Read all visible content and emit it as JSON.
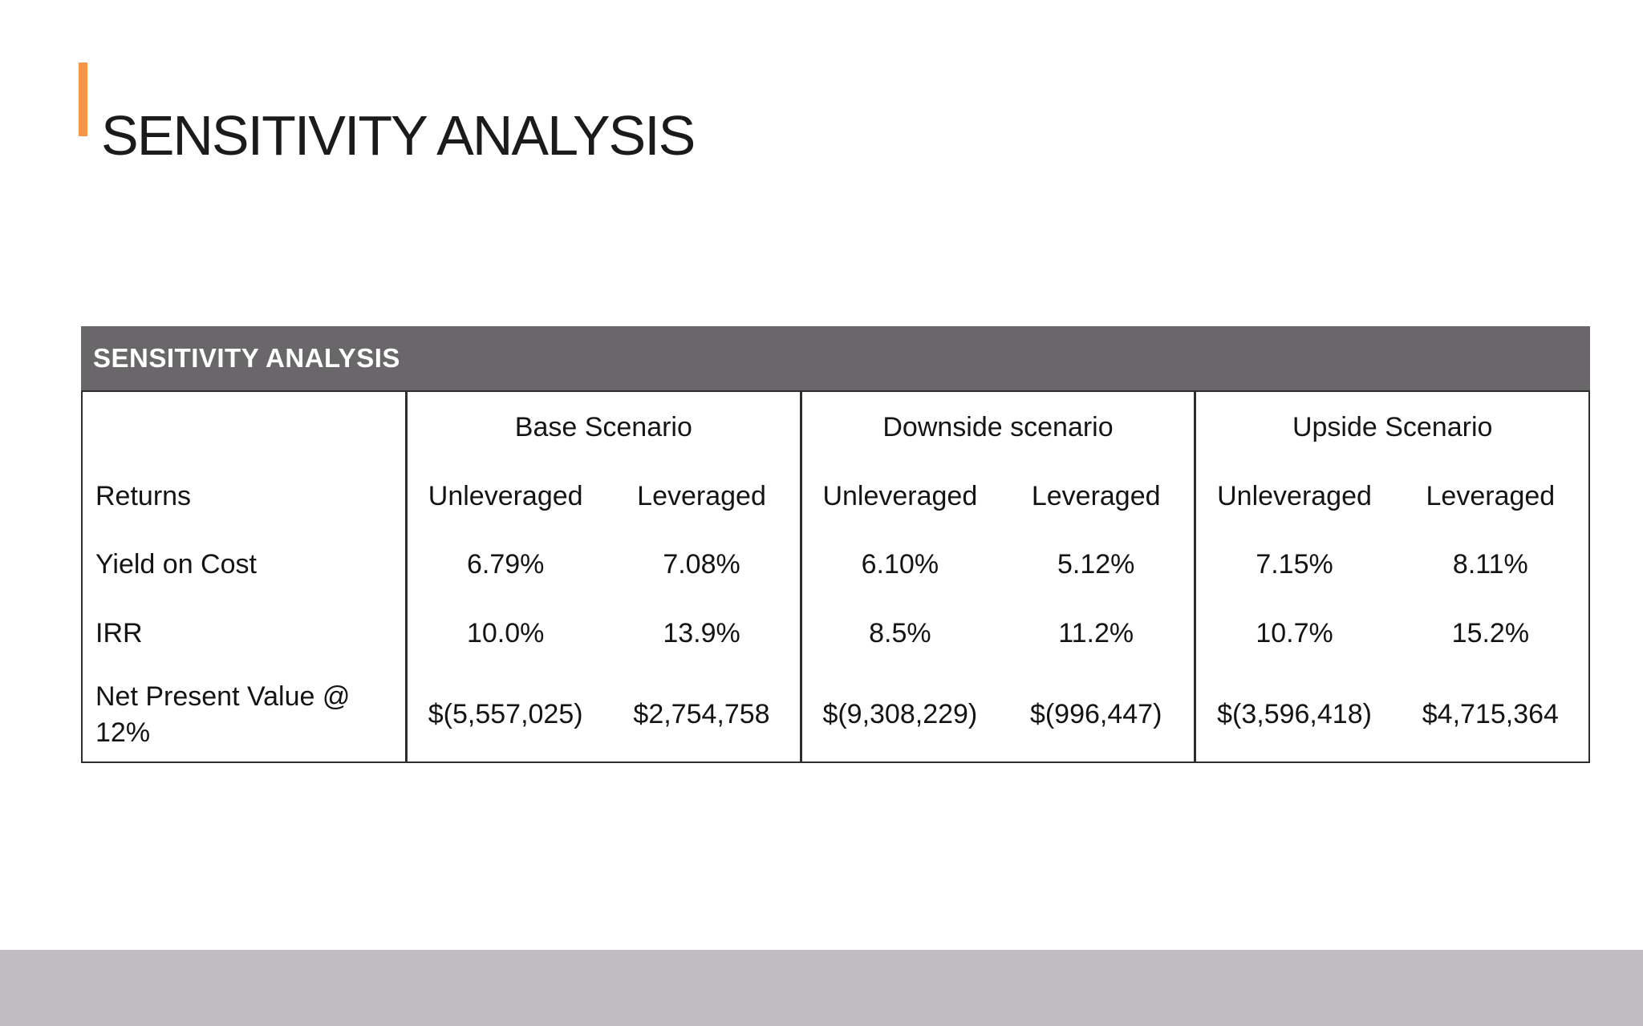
{
  "page": {
    "title": "SENSITIVITY ANALYSIS"
  },
  "colors": {
    "accent_orange": "#F79646",
    "table_header_gray": "#6A676A",
    "footer_gray": "#BFBDC0",
    "border_dark": "#2E2E2E"
  },
  "table": {
    "header": "SENSITIVITY ANALYSIS",
    "scenarios": [
      {
        "label": "Base Scenario"
      },
      {
        "label": "Downside scenario"
      },
      {
        "label": "Upside Scenario"
      }
    ],
    "returns_label": "Returns",
    "sub_headers": [
      "Unleveraged",
      "Leveraged",
      "Unleveraged",
      "Leveraged",
      "Unleveraged",
      "Leveraged"
    ],
    "rows": [
      {
        "label": "Yield on Cost",
        "values": [
          "6.79%",
          "7.08%",
          "6.10%",
          "5.12%",
          "7.15%",
          "8.11%"
        ]
      },
      {
        "label": "IRR",
        "values": [
          "10.0%",
          "13.9%",
          "8.5%",
          "11.2%",
          "10.7%",
          "15.2%"
        ]
      },
      {
        "label": "Net Present Value @ 12%",
        "values": [
          "$(5,557,025)",
          "$2,754,758",
          "$(9,308,229)",
          "$(996,447)",
          "$(3,596,418)",
          "$4,715,364"
        ]
      }
    ]
  },
  "chart_data": {
    "type": "table",
    "title": "SENSITIVITY ANALYSIS",
    "column_groups": [
      "Base Scenario",
      "Downside scenario",
      "Upside Scenario"
    ],
    "columns": [
      "Unleveraged",
      "Leveraged"
    ],
    "row_header": "Returns",
    "rows": [
      {
        "metric": "Yield on Cost",
        "base": [
          "6.79%",
          "7.08%"
        ],
        "downside": [
          "6.10%",
          "5.12%"
        ],
        "upside": [
          "7.15%",
          "8.11%"
        ]
      },
      {
        "metric": "IRR",
        "base": [
          "10.0%",
          "13.9%"
        ],
        "downside": [
          "8.5%",
          "11.2%"
        ],
        "upside": [
          "10.7%",
          "15.2%"
        ]
      },
      {
        "metric": "Net Present Value @ 12%",
        "base": [
          "$(5,557,025)",
          "$2,754,758"
        ],
        "downside": [
          "$(9,308,229)",
          "$(996,447)"
        ],
        "upside": [
          "$(3,596,418)",
          "$4,715,364"
        ]
      }
    ]
  }
}
